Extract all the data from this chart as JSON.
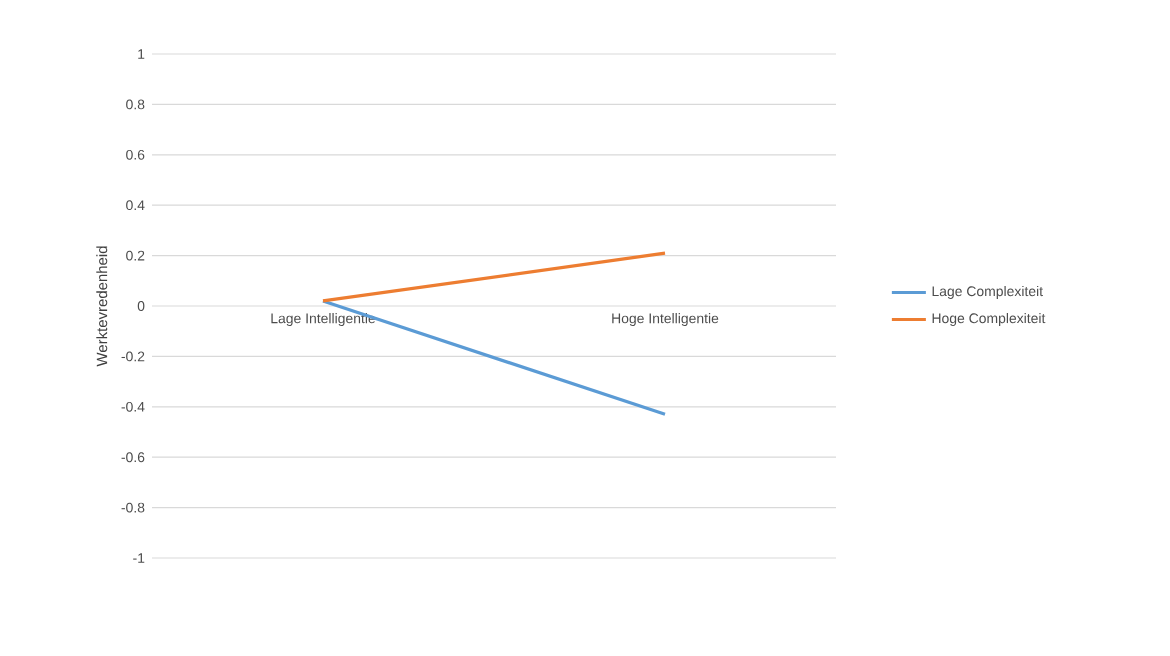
{
  "chart_data": {
    "type": "line",
    "ylabel": "Werktevredenheid",
    "categories": [
      "Lage Intelligentie",
      "Hoge Intelligentie"
    ],
    "series": [
      {
        "name": "Lage Complexiteit",
        "color": "#5b9bd5",
        "values": [
          0.02,
          -0.43
        ]
      },
      {
        "name": "Hoge Complexiteit",
        "color": "#ed7d31",
        "values": [
          0.02,
          0.21
        ]
      }
    ],
    "ylim": [
      -1,
      1
    ],
    "yticks": [
      -1,
      -0.8,
      -0.6,
      -0.4,
      -0.2,
      0,
      0.2,
      0.4,
      0.6,
      0.8,
      1
    ],
    "grid": "y",
    "legend": "right",
    "marker": "none",
    "line_style": "solid"
  }
}
